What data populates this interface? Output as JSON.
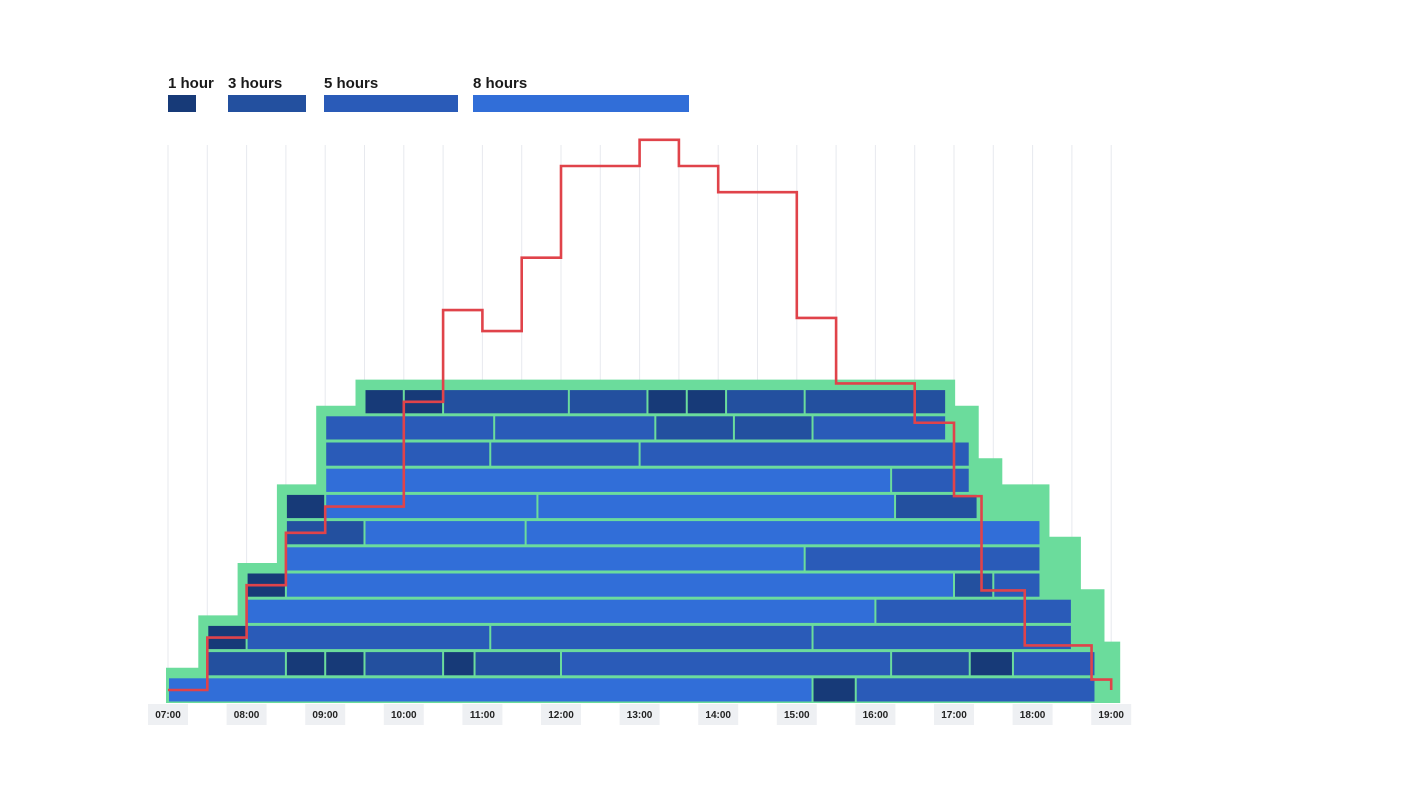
{
  "chart_data": {
    "type": "gantt-schedule",
    "title": "",
    "legend": {
      "placement": "top-left",
      "items": [
        {
          "label": "1 hour",
          "duration": 1,
          "color": "#173a78"
        },
        {
          "label": "3 hours",
          "duration": 3,
          "color": "#23509f"
        },
        {
          "label": "5 hours",
          "duration": 5,
          "color": "#2a5bb8"
        },
        {
          "label": "8 hours",
          "duration": 8,
          "color": "#316ed8"
        }
      ]
    },
    "x_axis": {
      "label": "",
      "range": [
        7.0,
        19.0
      ],
      "ticks": [
        {
          "label": "07:00",
          "value": 7
        },
        {
          "label": "08:00",
          "value": 8
        },
        {
          "label": "09:00",
          "value": 9
        },
        {
          "label": "10:00",
          "value": 10
        },
        {
          "label": "11:00",
          "value": 11
        },
        {
          "label": "12:00",
          "value": 12
        },
        {
          "label": "13:00",
          "value": 13
        },
        {
          "label": "14:00",
          "value": 14
        },
        {
          "label": "15:00",
          "value": 15
        },
        {
          "label": "16:00",
          "value": 16
        },
        {
          "label": "17:00",
          "value": 17
        },
        {
          "label": "18:00",
          "value": 18
        },
        {
          "label": "19:00",
          "value": 19
        }
      ],
      "gridlines_every_hours": 0.5
    },
    "coverage_color": "#6bdc9c",
    "demand_color": "#e0434a",
    "rows": [
      [
        [
          7.0,
          15.2,
          8
        ],
        [
          15.2,
          15.75,
          1
        ],
        [
          15.75,
          18.8,
          5
        ]
      ],
      [
        [
          7.5,
          8.5,
          3
        ],
        [
          8.5,
          9.0,
          1
        ],
        [
          9.0,
          9.5,
          1
        ],
        [
          9.5,
          10.5,
          3
        ],
        [
          10.5,
          10.9,
          1
        ],
        [
          10.9,
          12.0,
          3
        ],
        [
          12.0,
          16.2,
          5
        ],
        [
          16.2,
          17.2,
          3
        ],
        [
          17.2,
          17.75,
          1
        ],
        [
          17.75,
          18.8,
          5
        ]
      ],
      [
        [
          7.5,
          8.0,
          1
        ],
        [
          8.0,
          11.1,
          5
        ],
        [
          11.1,
          15.2,
          5
        ],
        [
          15.2,
          18.5,
          5
        ]
      ],
      [
        [
          8.0,
          16.0,
          8
        ],
        [
          16.0,
          18.5,
          5
        ]
      ],
      [
        [
          8.0,
          8.5,
          1
        ],
        [
          8.5,
          17.0,
          8
        ],
        [
          17.0,
          17.5,
          3
        ],
        [
          17.5,
          18.1,
          5
        ]
      ],
      [
        [
          8.5,
          15.1,
          8
        ],
        [
          15.1,
          18.1,
          5
        ]
      ],
      [
        [
          8.5,
          9.5,
          3
        ],
        [
          9.5,
          11.55,
          8
        ],
        [
          11.55,
          18.1,
          8
        ]
      ],
      [
        [
          8.5,
          9.0,
          1
        ],
        [
          9.0,
          11.7,
          8
        ],
        [
          11.7,
          16.25,
          8
        ],
        [
          16.25,
          17.3,
          3
        ]
      ],
      [
        [
          9.0,
          16.2,
          8
        ],
        [
          16.2,
          17.2,
          5
        ]
      ],
      [
        [
          9.0,
          11.1,
          5
        ],
        [
          11.1,
          13.0,
          5
        ],
        [
          13.0,
          17.2,
          5
        ]
      ],
      [
        [
          9.0,
          11.15,
          5
        ],
        [
          11.15,
          13.2,
          5
        ],
        [
          13.2,
          14.2,
          3
        ],
        [
          14.2,
          15.2,
          3
        ],
        [
          15.2,
          16.9,
          5
        ]
      ],
      [
        [
          9.5,
          10.0,
          1
        ],
        [
          10.0,
          10.5,
          1
        ],
        [
          10.5,
          12.1,
          3
        ],
        [
          12.1,
          13.1,
          3
        ],
        [
          13.1,
          13.6,
          1
        ],
        [
          13.6,
          14.1,
          1
        ],
        [
          14.1,
          15.1,
          3
        ],
        [
          15.1,
          16.9,
          3
        ]
      ]
    ],
    "coverage_steps": [
      [
        7.0,
        1
      ],
      [
        7.5,
        3
      ],
      [
        8.0,
        5
      ],
      [
        8.5,
        8
      ],
      [
        9.0,
        11
      ],
      [
        9.5,
        12
      ],
      [
        16.9,
        11
      ],
      [
        17.2,
        9
      ],
      [
        17.5,
        8
      ],
      [
        18.1,
        6
      ],
      [
        18.5,
        4
      ],
      [
        18.8,
        2
      ],
      [
        19.0,
        0
      ]
    ],
    "demand_steps": [
      [
        7.0,
        0
      ],
      [
        7.5,
        2
      ],
      [
        8.0,
        4
      ],
      [
        8.5,
        6
      ],
      [
        9.0,
        7
      ],
      [
        10.0,
        11
      ],
      [
        10.5,
        14.5
      ],
      [
        11.0,
        13.7
      ],
      [
        11.5,
        16.5
      ],
      [
        12.0,
        20
      ],
      [
        13.0,
        21
      ],
      [
        13.5,
        20
      ],
      [
        14.0,
        19
      ],
      [
        15.0,
        14.2
      ],
      [
        15.5,
        11.7
      ],
      [
        16.5,
        10.2
      ],
      [
        17.0,
        7.4
      ],
      [
        17.35,
        3.8
      ],
      [
        17.9,
        1.7
      ],
      [
        18.75,
        0.4
      ],
      [
        19.0,
        0
      ]
    ]
  }
}
